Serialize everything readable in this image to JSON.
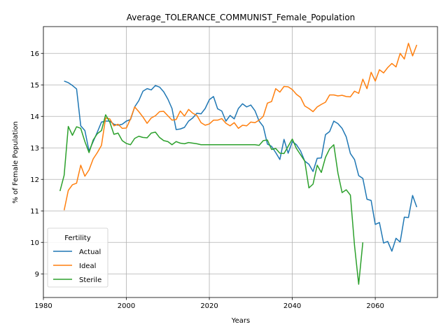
{
  "chart_data": {
    "type": "line",
    "title": "Average_TOLERANCE_COMMUNIST_Female_Population",
    "xlabel": "Years",
    "ylabel": "% of Female Population",
    "xlim": [
      1980,
      2075
    ],
    "ylim": [
      8.25,
      16.85
    ],
    "xticks": [
      1980,
      2000,
      2020,
      2040,
      2060
    ],
    "yticks": [
      9,
      10,
      11,
      12,
      13,
      14,
      15,
      16
    ],
    "grid": true,
    "legend": {
      "title": "Fertility",
      "placement": "lower-left"
    },
    "series": [
      {
        "name": "Actual",
        "color": "#1f77b4",
        "points": [
          [
            1985,
            15.12
          ],
          [
            1986,
            15.07
          ],
          [
            1987,
            14.98
          ],
          [
            1988,
            14.87
          ],
          [
            1989,
            13.7
          ],
          [
            1990,
            13.55
          ],
          [
            1991,
            12.9
          ],
          [
            1992,
            13.2
          ],
          [
            1993,
            13.5
          ],
          [
            1994,
            13.82
          ],
          [
            1995,
            13.85
          ],
          [
            1996,
            13.85
          ],
          [
            1997,
            13.75
          ],
          [
            1998,
            13.72
          ],
          [
            1999,
            13.75
          ],
          [
            2000,
            13.85
          ],
          [
            2001,
            13.9
          ],
          [
            2002,
            14.3
          ],
          [
            2003,
            14.5
          ],
          [
            2004,
            14.8
          ],
          [
            2005,
            14.88
          ],
          [
            2006,
            14.84
          ],
          [
            2007,
            14.98
          ],
          [
            2008,
            14.93
          ],
          [
            2009,
            14.78
          ],
          [
            2010,
            14.55
          ],
          [
            2011,
            14.25
          ],
          [
            2012,
            13.58
          ],
          [
            2013,
            13.6
          ],
          [
            2014,
            13.65
          ],
          [
            2015,
            13.85
          ],
          [
            2016,
            13.95
          ],
          [
            2017,
            14.1
          ],
          [
            2018,
            14.08
          ],
          [
            2019,
            14.25
          ],
          [
            2020,
            14.53
          ],
          [
            2021,
            14.63
          ],
          [
            2022,
            14.24
          ],
          [
            2023,
            14.17
          ],
          [
            2024,
            13.85
          ],
          [
            2025,
            14.03
          ],
          [
            2026,
            13.92
          ],
          [
            2027,
            14.25
          ],
          [
            2028,
            14.4
          ],
          [
            2029,
            14.3
          ],
          [
            2030,
            14.36
          ],
          [
            2031,
            14.18
          ],
          [
            2032,
            13.85
          ],
          [
            2033,
            13.68
          ],
          [
            2034,
            13.12
          ],
          [
            2035,
            13.05
          ],
          [
            2036,
            12.85
          ],
          [
            2037,
            12.63
          ],
          [
            2038,
            13.27
          ],
          [
            2039,
            12.83
          ],
          [
            2040,
            13.2
          ],
          [
            2041,
            13.1
          ],
          [
            2042,
            12.9
          ],
          [
            2043,
            12.58
          ],
          [
            2044,
            12.48
          ],
          [
            2045,
            12.25
          ],
          [
            2046,
            12.67
          ],
          [
            2047,
            12.68
          ],
          [
            2048,
            13.42
          ],
          [
            2049,
            13.52
          ],
          [
            2050,
            13.85
          ],
          [
            2051,
            13.77
          ],
          [
            2052,
            13.62
          ],
          [
            2053,
            13.35
          ],
          [
            2054,
            12.82
          ],
          [
            2055,
            12.63
          ],
          [
            2056,
            12.12
          ],
          [
            2057,
            12.03
          ],
          [
            2058,
            11.37
          ],
          [
            2059,
            11.33
          ],
          [
            2060,
            10.57
          ],
          [
            2061,
            10.63
          ],
          [
            2062,
            9.98
          ],
          [
            2063,
            10.03
          ],
          [
            2064,
            9.72
          ],
          [
            2065,
            10.13
          ],
          [
            2066,
            10.01
          ],
          [
            2067,
            10.8
          ],
          [
            2068,
            10.79
          ],
          [
            2069,
            11.49
          ],
          [
            2070,
            11.12
          ]
        ]
      },
      {
        "name": "Ideal",
        "color": "#ff7f0e",
        "points": [
          [
            1985,
            11.02
          ],
          [
            1986,
            11.65
          ],
          [
            1987,
            11.83
          ],
          [
            1988,
            11.88
          ],
          [
            1989,
            12.45
          ],
          [
            1990,
            12.1
          ],
          [
            1991,
            12.3
          ],
          [
            1992,
            12.65
          ],
          [
            1993,
            12.85
          ],
          [
            1994,
            13.08
          ],
          [
            1995,
            13.95
          ],
          [
            1996,
            13.92
          ],
          [
            1997,
            13.7
          ],
          [
            1998,
            13.75
          ],
          [
            1999,
            13.62
          ],
          [
            2000,
            13.63
          ],
          [
            2001,
            13.92
          ],
          [
            2002,
            14.3
          ],
          [
            2003,
            14.15
          ],
          [
            2004,
            13.98
          ],
          [
            2005,
            13.78
          ],
          [
            2006,
            13.95
          ],
          [
            2007,
            14.02
          ],
          [
            2008,
            14.15
          ],
          [
            2009,
            14.16
          ],
          [
            2010,
            14.02
          ],
          [
            2011,
            13.88
          ],
          [
            2012,
            13.9
          ],
          [
            2013,
            14.17
          ],
          [
            2014,
            14.01
          ],
          [
            2015,
            14.22
          ],
          [
            2016,
            14.1
          ],
          [
            2017,
            14.03
          ],
          [
            2018,
            13.8
          ],
          [
            2019,
            13.72
          ],
          [
            2020,
            13.76
          ],
          [
            2021,
            13.88
          ],
          [
            2022,
            13.88
          ],
          [
            2023,
            13.93
          ],
          [
            2024,
            13.78
          ],
          [
            2025,
            13.7
          ],
          [
            2026,
            13.8
          ],
          [
            2027,
            13.62
          ],
          [
            2028,
            13.72
          ],
          [
            2029,
            13.7
          ],
          [
            2030,
            13.82
          ],
          [
            2031,
            13.8
          ],
          [
            2032,
            13.88
          ],
          [
            2033,
            14.0
          ],
          [
            2034,
            14.42
          ],
          [
            2035,
            14.47
          ],
          [
            2036,
            14.88
          ],
          [
            2037,
            14.77
          ],
          [
            2038,
            14.95
          ],
          [
            2039,
            14.94
          ],
          [
            2040,
            14.85
          ],
          [
            2041,
            14.7
          ],
          [
            2042,
            14.6
          ],
          [
            2043,
            14.33
          ],
          [
            2044,
            14.25
          ],
          [
            2045,
            14.15
          ],
          [
            2046,
            14.3
          ],
          [
            2047,
            14.38
          ],
          [
            2048,
            14.45
          ],
          [
            2049,
            14.68
          ],
          [
            2050,
            14.68
          ],
          [
            2051,
            14.65
          ],
          [
            2052,
            14.67
          ],
          [
            2053,
            14.63
          ],
          [
            2054,
            14.62
          ],
          [
            2055,
            14.8
          ],
          [
            2056,
            14.73
          ],
          [
            2057,
            15.18
          ],
          [
            2058,
            14.88
          ],
          [
            2059,
            15.4
          ],
          [
            2060,
            15.12
          ],
          [
            2061,
            15.48
          ],
          [
            2062,
            15.38
          ],
          [
            2063,
            15.55
          ],
          [
            2064,
            15.68
          ],
          [
            2065,
            15.57
          ],
          [
            2066,
            16.0
          ],
          [
            2067,
            15.82
          ],
          [
            2068,
            16.32
          ],
          [
            2069,
            15.92
          ],
          [
            2070,
            16.27
          ]
        ]
      },
      {
        "name": "Sterile",
        "color": "#2ca02c",
        "points": [
          [
            1984,
            11.63
          ],
          [
            1985,
            12.13
          ],
          [
            1986,
            13.68
          ],
          [
            1987,
            13.4
          ],
          [
            1988,
            13.67
          ],
          [
            1989,
            13.62
          ],
          [
            1990,
            13.2
          ],
          [
            1991,
            12.85
          ],
          [
            1992,
            13.25
          ],
          [
            1993,
            13.45
          ],
          [
            1994,
            13.55
          ],
          [
            1995,
            14.05
          ],
          [
            1996,
            13.82
          ],
          [
            1997,
            13.43
          ],
          [
            1998,
            13.47
          ],
          [
            1999,
            13.23
          ],
          [
            2000,
            13.14
          ],
          [
            2001,
            13.1
          ],
          [
            2002,
            13.3
          ],
          [
            2003,
            13.37
          ],
          [
            2004,
            13.33
          ],
          [
            2005,
            13.32
          ],
          [
            2006,
            13.47
          ],
          [
            2007,
            13.5
          ],
          [
            2008,
            13.33
          ],
          [
            2009,
            13.23
          ],
          [
            2010,
            13.2
          ],
          [
            2011,
            13.1
          ],
          [
            2012,
            13.2
          ],
          [
            2013,
            13.15
          ],
          [
            2014,
            13.13
          ],
          [
            2015,
            13.17
          ],
          [
            2016,
            13.15
          ],
          [
            2017,
            13.13
          ],
          [
            2018,
            13.1
          ],
          [
            2019,
            13.1
          ],
          [
            2020,
            13.1
          ],
          [
            2021,
            13.1
          ],
          [
            2022,
            13.1
          ],
          [
            2023,
            13.1
          ],
          [
            2024,
            13.1
          ],
          [
            2025,
            13.1
          ],
          [
            2026,
            13.1
          ],
          [
            2027,
            13.1
          ],
          [
            2028,
            13.1
          ],
          [
            2029,
            13.1
          ],
          [
            2030,
            13.1
          ],
          [
            2031,
            13.1
          ],
          [
            2032,
            13.08
          ],
          [
            2033,
            13.23
          ],
          [
            2034,
            13.25
          ],
          [
            2035,
            12.95
          ],
          [
            2036,
            12.98
          ],
          [
            2037,
            12.83
          ],
          [
            2038,
            12.82
          ],
          [
            2039,
            13.05
          ],
          [
            2040,
            13.28
          ],
          [
            2041,
            12.98
          ],
          [
            2042,
            12.78
          ],
          [
            2043,
            12.58
          ],
          [
            2044,
            11.73
          ],
          [
            2045,
            11.85
          ],
          [
            2046,
            12.45
          ],
          [
            2047,
            12.22
          ],
          [
            2048,
            12.7
          ],
          [
            2049,
            12.97
          ],
          [
            2050,
            13.1
          ],
          [
            2051,
            12.2
          ],
          [
            2052,
            11.58
          ],
          [
            2053,
            11.67
          ],
          [
            2054,
            11.5
          ],
          [
            2055,
            9.9
          ],
          [
            2056,
            8.67
          ],
          [
            2057,
            10.0
          ]
        ]
      }
    ]
  }
}
